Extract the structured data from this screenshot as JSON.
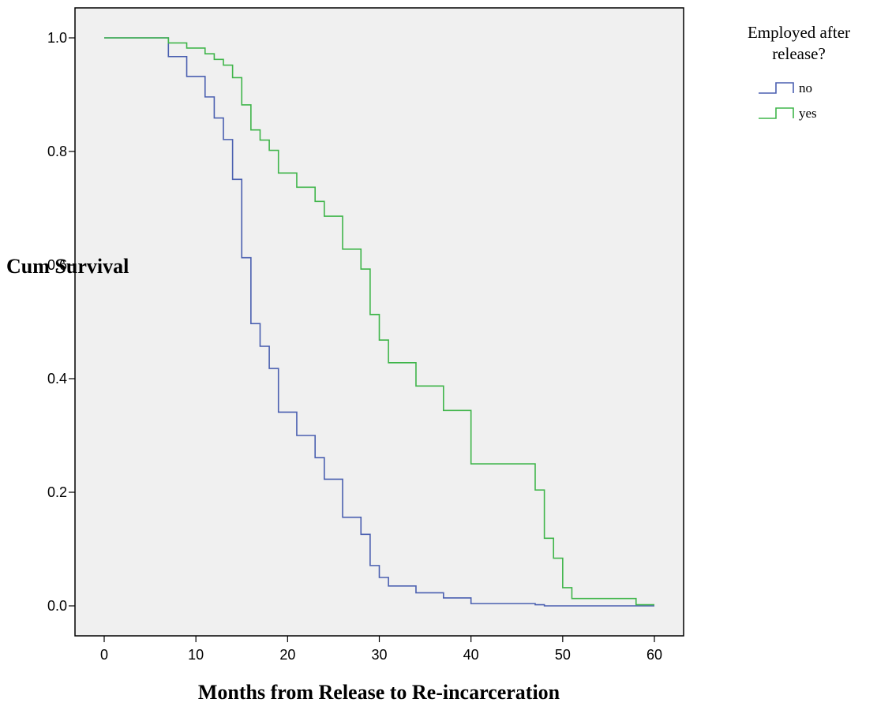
{
  "chart_data": {
    "type": "line",
    "step": true,
    "title": "",
    "xlabel": "Months from Release to Re-incarceration",
    "ylabel": "Cum Survival",
    "xlim": [
      0,
      60
    ],
    "ylim": [
      0,
      1
    ],
    "xticks": [
      "0",
      "10",
      "20",
      "30",
      "40",
      "50",
      "60"
    ],
    "yticks": [
      "0.0",
      "0.2",
      "0.4",
      "0.6",
      "0.8",
      "1.0"
    ],
    "grid": false,
    "background": "#f0f0f0",
    "legend": {
      "title_lines": [
        "Employed after",
        "release?"
      ],
      "position": "right"
    },
    "series": [
      {
        "name": "no",
        "color": "#4a5fb0",
        "points": [
          [
            0,
            1.0
          ],
          [
            7,
            0.967
          ],
          [
            9,
            0.932
          ],
          [
            11,
            0.896
          ],
          [
            12,
            0.859
          ],
          [
            13,
            0.821
          ],
          [
            14,
            0.751
          ],
          [
            15,
            0.613
          ],
          [
            16,
            0.497
          ],
          [
            17,
            0.457
          ],
          [
            18,
            0.418
          ],
          [
            19,
            0.341
          ],
          [
            21,
            0.3
          ],
          [
            23,
            0.261
          ],
          [
            24,
            0.223
          ],
          [
            26,
            0.156
          ],
          [
            28,
            0.126
          ],
          [
            29,
            0.071
          ],
          [
            30,
            0.05
          ],
          [
            31,
            0.035
          ],
          [
            34,
            0.023
          ],
          [
            37,
            0.014
          ],
          [
            40,
            0.004
          ],
          [
            47,
            0.002
          ],
          [
            48,
            0.0
          ],
          [
            60,
            0.0
          ]
        ]
      },
      {
        "name": "yes",
        "color": "#3fb54a",
        "points": [
          [
            0,
            1.0
          ],
          [
            7,
            0.991
          ],
          [
            9,
            0.982
          ],
          [
            11,
            0.972
          ],
          [
            12,
            0.962
          ],
          [
            13,
            0.952
          ],
          [
            14,
            0.93
          ],
          [
            15,
            0.882
          ],
          [
            16,
            0.838
          ],
          [
            17,
            0.82
          ],
          [
            18,
            0.802
          ],
          [
            19,
            0.762
          ],
          [
            21,
            0.737
          ],
          [
            23,
            0.712
          ],
          [
            24,
            0.686
          ],
          [
            26,
            0.628
          ],
          [
            28,
            0.593
          ],
          [
            29,
            0.513
          ],
          [
            30,
            0.468
          ],
          [
            31,
            0.428
          ],
          [
            34,
            0.387
          ],
          [
            37,
            0.344
          ],
          [
            40,
            0.25
          ],
          [
            47,
            0.204
          ],
          [
            48,
            0.119
          ],
          [
            49,
            0.084
          ],
          [
            50,
            0.032
          ],
          [
            51,
            0.013
          ],
          [
            58,
            0.002
          ],
          [
            60,
            0.002
          ]
        ]
      }
    ]
  }
}
